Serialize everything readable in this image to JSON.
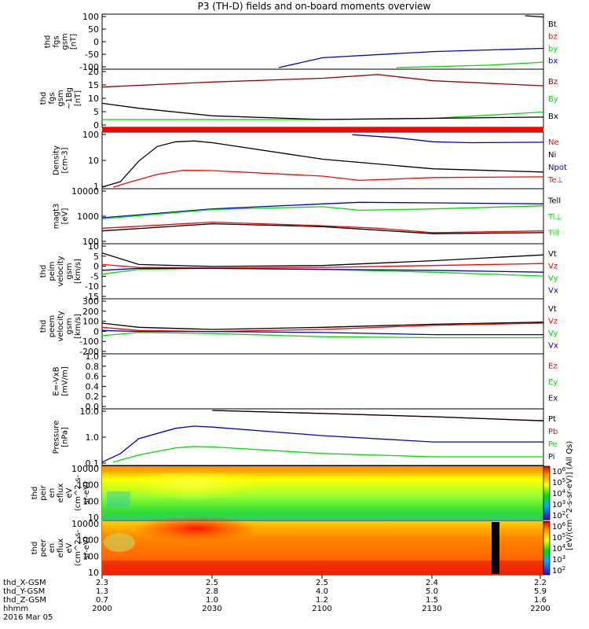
{
  "title": "P3 (TH-D) fields and on-board moments overview",
  "colors": {
    "black": "#000000",
    "red": "#ff0000",
    "darkred": "#a00000",
    "green": "#00dd00",
    "blue": "#0000cc"
  },
  "chart_data": [
    {
      "type": "line",
      "panel": "fgs_gsm_top",
      "ylabel": [
        "thd",
        "fgs",
        "gsm",
        "[nT]"
      ],
      "ytick_labels": [
        "100",
        "50",
        "0",
        "-50",
        "-100"
      ],
      "ylim": [
        -100,
        110
      ],
      "legend": [
        {
          "label": "Bt",
          "color": "black"
        },
        {
          "label": "bz",
          "color": "red"
        },
        {
          "label": "by",
          "color": "green"
        },
        {
          "label": "bx",
          "color": "blue"
        }
      ],
      "series": [
        {
          "name": "bx",
          "color": "blue",
          "x": [
            2048,
            2100,
            2130,
            2200
          ],
          "y": [
            -100,
            -60,
            -35,
            -22
          ]
        },
        {
          "name": "by",
          "color": "green",
          "x": [
            2120,
            2145,
            2200
          ],
          "y": [
            -100,
            -90,
            -78
          ]
        },
        {
          "name": "Bt",
          "color": "black",
          "x": [
            2155,
            2200
          ],
          "y": [
            110,
            105
          ]
        }
      ]
    },
    {
      "type": "line",
      "panel": "fgs_gsm_lowres",
      "ylabel": [
        "thd",
        "fgs",
        "gsm",
        "~1Bg",
        "[nT]"
      ],
      "ytick_labels": [
        "20",
        "15",
        "10",
        "5",
        "0"
      ],
      "ylim": [
        -2,
        20
      ],
      "legend": [
        {
          "label": "Bz",
          "color": "darkred"
        },
        {
          "label": "By",
          "color": "green"
        },
        {
          "label": "Bx",
          "color": "black"
        }
      ],
      "series": [
        {
          "name": "Bz",
          "color": "darkred",
          "x": [
            2000,
            2030,
            2100,
            2115,
            2130,
            2200
          ],
          "y": [
            13.5,
            15.5,
            17,
            18.5,
            16,
            14
          ]
        },
        {
          "name": "By",
          "color": "green",
          "x": [
            2000,
            2030,
            2100,
            2130,
            2200
          ],
          "y": [
            0.5,
            0.5,
            0.5,
            1,
            3.5
          ]
        },
        {
          "name": "Bx",
          "color": "black",
          "x": [
            2000,
            2010,
            2030,
            2100,
            2200
          ],
          "y": [
            7,
            5,
            2,
            0.5,
            1.5
          ]
        }
      ]
    },
    {
      "type": "line",
      "panel": "density",
      "log": true,
      "ylabel": [
        "Density",
        "[cm-3]"
      ],
      "ytick_labels": [
        "100",
        "10",
        "1"
      ],
      "ylim": [
        0.3,
        250
      ],
      "legend": [
        {
          "label": "Ne",
          "color": "red"
        },
        {
          "label": "Ni",
          "color": "black"
        },
        {
          "label": "Npot",
          "color": "blue"
        },
        {
          "label": "Te⊥",
          "color": "red"
        }
      ],
      "series": [
        {
          "name": "Ni",
          "color": "black",
          "x": [
            2000,
            2005,
            2010,
            2015,
            2020,
            2025,
            2030,
            2100,
            2130,
            2200
          ],
          "y": [
            0.3,
            0.6,
            8,
            50,
            90,
            100,
            80,
            10,
            3,
            2
          ]
        },
        {
          "name": "Ne",
          "color": "red",
          "x": [
            2003,
            2008,
            2015,
            2022,
            2030,
            2100,
            2110,
            2130,
            2200
          ],
          "y": [
            0.3,
            0.6,
            1.5,
            2.5,
            2.4,
            1.2,
            0.7,
            1,
            1.1
          ]
        },
        {
          "name": "Npot",
          "color": "blue",
          "x": [
            2108,
            2120,
            2130,
            2140,
            2200
          ],
          "y": [
            220,
            150,
            90,
            80,
            85
          ]
        }
      ]
    },
    {
      "type": "line",
      "panel": "moments_temperature",
      "log": true,
      "ylabel": [
        "magt3",
        "[eV]"
      ],
      "ytick_labels": [
        "10000",
        "1000",
        "100"
      ],
      "ylim": [
        30,
        12000
      ],
      "legend": [
        {
          "label": "Tell",
          "color": "black"
        },
        {
          "label": "Ti⊥",
          "color": "green"
        },
        {
          "label": "Till",
          "color": "green"
        }
      ],
      "series": [
        {
          "name": "Ti",
          "color": "blue",
          "x": [
            2000,
            2030,
            2100,
            2110,
            2130,
            2200
          ],
          "y": [
            500,
            1400,
            2500,
            3000,
            2800,
            2500
          ]
        },
        {
          "name": "Till",
          "color": "green",
          "x": [
            2000,
            2030,
            2100,
            2110,
            2130,
            2200
          ],
          "y": [
            450,
            1300,
            1800,
            1200,
            1400,
            2000
          ]
        },
        {
          "name": "Te_perp",
          "color": "red",
          "x": [
            2000,
            2030,
            2100,
            2115,
            2130,
            2200
          ],
          "y": [
            150,
            300,
            200,
            150,
            90,
            110
          ]
        },
        {
          "name": "Tell",
          "color": "black",
          "x": [
            2000,
            2030,
            2100,
            2115,
            2130,
            2200
          ],
          "y": [
            110,
            250,
            180,
            120,
            80,
            90
          ]
        }
      ]
    },
    {
      "type": "line",
      "panel": "peim_velocity",
      "ylabel": [
        "thd",
        "peim",
        "velocity",
        "gsm",
        "[km/s]"
      ],
      "ytick_labels": [
        "10",
        "5",
        "0",
        "-5",
        "-10",
        "-15"
      ],
      "ylim": [
        -15,
        12
      ],
      "legend": [
        {
          "label": "Vt",
          "color": "black"
        },
        {
          "label": "Vz",
          "color": "red"
        },
        {
          "label": "Vy",
          "color": "green"
        },
        {
          "label": "Vx",
          "color": "blue"
        }
      ],
      "series": [
        {
          "name": "Vt",
          "color": "black",
          "x": [
            2000,
            2010,
            2030,
            2100,
            2130,
            2200
          ],
          "y": [
            8,
            2,
            1,
            1.5,
            4,
            7
          ]
        },
        {
          "name": "Vz",
          "color": "red",
          "x": [
            2000,
            2010,
            2030,
            2100,
            2130,
            2200
          ],
          "y": [
            2,
            0.5,
            0.2,
            0.5,
            1.5,
            2.5
          ]
        },
        {
          "name": "Vy",
          "color": "green",
          "x": [
            2000,
            2010,
            2030,
            2100,
            2130,
            2200
          ],
          "y": [
            -3,
            -0.5,
            0,
            -0.5,
            -2,
            -4
          ]
        },
        {
          "name": "Vx",
          "color": "blue",
          "x": [
            2000,
            2010,
            2030,
            2100,
            2130,
            2200
          ],
          "y": [
            -1,
            0,
            0,
            -0.5,
            -1,
            -2
          ]
        }
      ]
    },
    {
      "type": "line",
      "panel": "peem_velocity",
      "ylabel": [
        "thd",
        "peem",
        "velocity",
        "gsm",
        "[km/s]"
      ],
      "ytick_labels": [
        "300",
        "200",
        "100",
        "0",
        "-100",
        "-200"
      ],
      "ylim": [
        -200,
        300
      ],
      "legend": [
        {
          "label": "Vt",
          "color": "black"
        },
        {
          "label": "Vz",
          "color": "red"
        },
        {
          "label": "Vy",
          "color": "green"
        },
        {
          "label": "Vx",
          "color": "blue"
        }
      ],
      "series": [
        {
          "name": "Vt",
          "color": "black",
          "x": [
            2000,
            2010,
            2030,
            2100,
            2130,
            2200
          ],
          "y": [
            80,
            40,
            20,
            40,
            70,
            90
          ]
        },
        {
          "name": "Vz",
          "color": "red",
          "x": [
            2000,
            2010,
            2030,
            2100,
            2130,
            2200
          ],
          "y": [
            40,
            10,
            0,
            20,
            60,
            80
          ]
        },
        {
          "name": "Vx",
          "color": "blue",
          "x": [
            2000,
            2010,
            2030,
            2100,
            2130,
            2200
          ],
          "y": [
            10,
            0,
            0,
            -10,
            -30,
            -30
          ]
        },
        {
          "name": "Vy",
          "color": "green",
          "x": [
            2000,
            2010,
            2030,
            2100,
            2130,
            2200
          ],
          "y": [
            -40,
            -10,
            -20,
            -50,
            -60,
            -60
          ]
        }
      ]
    },
    {
      "type": "line",
      "panel": "efield",
      "ylabel": [
        "E=-VxB",
        "[mV/m]"
      ],
      "ytick_labels": [
        "1.0",
        "0.8",
        "0.6",
        "0.4",
        "0.2",
        "0.0"
      ],
      "ylim": [
        0,
        1
      ],
      "legend": [
        {
          "label": "Ez",
          "color": "red"
        },
        {
          "label": "Ey",
          "color": "green"
        },
        {
          "label": "Ex",
          "color": "blue"
        }
      ],
      "series": []
    },
    {
      "type": "line",
      "panel": "pressure",
      "log": true,
      "ylabel": [
        "Pressure",
        "[nPa]"
      ],
      "ytick_labels": [
        "10.0",
        "1.0",
        "0.1"
      ],
      "ylim": [
        0.01,
        40
      ],
      "legend": [
        {
          "label": "Pt",
          "color": "black"
        },
        {
          "label": "Pb",
          "color": "red"
        },
        {
          "label": "Pe",
          "color": "green"
        },
        {
          "label": "Pi",
          "color": "blue"
        }
      ],
      "series": [
        {
          "name": "Pb",
          "color": "red",
          "x": [
            2030,
            2100,
            2130,
            2200
          ],
          "y": [
            40,
            25,
            15,
            8
          ]
        },
        {
          "name": "Pt",
          "color": "black",
          "x": [
            2030,
            2100,
            2130,
            2200
          ],
          "y": [
            40,
            25,
            15,
            8
          ]
        },
        {
          "name": "Pi",
          "color": "blue",
          "x": [
            2000,
            2005,
            2010,
            2020,
            2025,
            2030,
            2100,
            2130,
            2200
          ],
          "y": [
            0.013,
            0.05,
            0.5,
            2.5,
            3.5,
            3,
            0.8,
            0.3,
            0.3
          ]
        },
        {
          "name": "Pe",
          "color": "green",
          "x": [
            2003,
            2010,
            2020,
            2025,
            2030,
            2100,
            2130,
            2200
          ],
          "y": [
            0.013,
            0.04,
            0.12,
            0.15,
            0.14,
            0.05,
            0.03,
            0.03
          ]
        }
      ]
    },
    {
      "type": "heatmap",
      "panel": "peir_en_eflux",
      "ylabel": [
        "thd",
        "peir",
        "en",
        "eflux",
        "eV",
        "(cm^2-s-",
        "sr-eV)"
      ],
      "ytick_labels": [
        "10000",
        "1000",
        "100",
        "10"
      ],
      "colorbar_ticks": [
        "10^6",
        "10^5",
        "10^4",
        "10^3",
        "10^2"
      ],
      "colorbar_label": "[eV/(cm^2-s-sr-eV)] (All Qs)"
    },
    {
      "type": "heatmap",
      "panel": "peer_en_eflux",
      "ylabel": [
        "thd",
        "peer",
        "en",
        "eflux",
        "eV",
        "(cm^2-s-",
        "sr-eV)"
      ],
      "ytick_labels": [
        "10000",
        "1000",
        "100",
        "10"
      ],
      "colorbar_ticks": [
        "10^6",
        "10^5",
        "10^4",
        "10^3",
        "10^2"
      ]
    }
  ],
  "footer": {
    "row_labels": [
      "thd_X-GSM",
      "thd_Y-GSM",
      "thd_Z-GSM",
      "hhmm",
      "2016 Mar 05"
    ],
    "columns": [
      [
        "2.3",
        "1.3",
        "0.7",
        "2000"
      ],
      [
        "2.5",
        "2.8",
        "1.0",
        "2030"
      ],
      [
        "2.5",
        "4.0",
        "1.2",
        "2100"
      ],
      [
        "2.4",
        "5.0",
        "1.5",
        "2130"
      ],
      [
        "2.2",
        "5.9",
        "1.6",
        "2200"
      ]
    ]
  }
}
